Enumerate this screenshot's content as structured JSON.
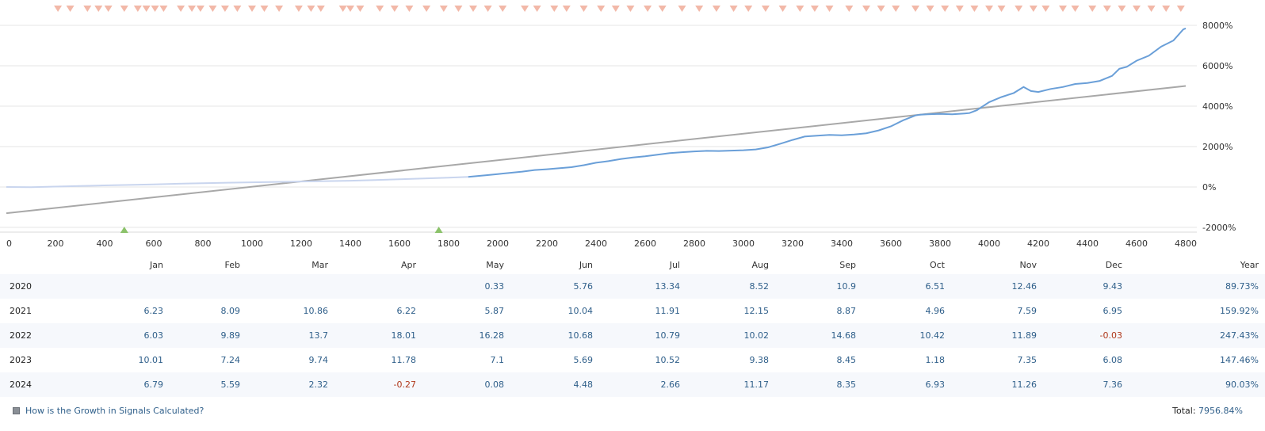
{
  "chart_data": {
    "type": "line",
    "x_ticks": [
      "0",
      "200",
      "400",
      "600",
      "800",
      "1000",
      "1200",
      "1400",
      "1600",
      "1800",
      "2000",
      "2200",
      "2400",
      "2600",
      "2800",
      "3000",
      "3200",
      "3400",
      "3600",
      "3800",
      "4000",
      "4200",
      "4400",
      "4600",
      "4800"
    ],
    "y_ticks": [
      "8000%",
      "6000%",
      "4000%",
      "2000%",
      "0%",
      "-2000%"
    ],
    "xlim": [
      0,
      4800
    ],
    "ylim": [
      -2000,
      8000
    ],
    "grid": true,
    "series": [
      {
        "kind": "growth",
        "color": "#6a9fd8",
        "faded_color": "#c9d5ee",
        "faded_until": 1900,
        "x": [
          0,
          100,
          200,
          300,
          400,
          500,
          600,
          700,
          800,
          900,
          1000,
          1100,
          1200,
          1300,
          1400,
          1500,
          1600,
          1700,
          1800,
          1880,
          1950,
          2000,
          2100,
          2150,
          2200,
          2300,
          2350,
          2400,
          2450,
          2500,
          2550,
          2600,
          2650,
          2700,
          2750,
          2800,
          2850,
          2900,
          2950,
          3000,
          3050,
          3100,
          3150,
          3200,
          3250,
          3300,
          3350,
          3400,
          3450,
          3500,
          3550,
          3600,
          3650,
          3700,
          3720,
          3750,
          3800,
          3850,
          3900,
          3920,
          3950,
          4000,
          4050,
          4100,
          4140,
          4170,
          4200,
          4250,
          4300,
          4350,
          4400,
          4450,
          4500,
          4530,
          4560,
          4600,
          4650,
          4700,
          4750,
          4790,
          4800
        ],
        "y": [
          0,
          -10,
          20,
          50,
          80,
          100,
          130,
          160,
          190,
          210,
          230,
          250,
          270,
          290,
          310,
          340,
          380,
          420,
          460,
          500,
          580,
          640,
          760,
          840,
          880,
          980,
          1080,
          1200,
          1280,
          1380,
          1460,
          1520,
          1600,
          1680,
          1720,
          1760,
          1790,
          1780,
          1800,
          1820,
          1860,
          1960,
          2140,
          2330,
          2500,
          2540,
          2580,
          2560,
          2600,
          2660,
          2800,
          3000,
          3300,
          3540,
          3580,
          3600,
          3620,
          3600,
          3640,
          3660,
          3800,
          4200,
          4450,
          4650,
          4950,
          4750,
          4700,
          4850,
          4950,
          5100,
          5150,
          5250,
          5500,
          5850,
          5950,
          6250,
          6500,
          6950,
          7250,
          7800,
          7850
        ]
      },
      {
        "kind": "trend",
        "color": "#a8a8a8",
        "x": [
          0,
          4800
        ],
        "y": [
          -1300,
          5000
        ]
      }
    ],
    "markers_top": [
      210,
      260,
      330,
      375,
      415,
      480,
      535,
      570,
      605,
      640,
      710,
      755,
      790,
      840,
      890,
      940,
      1000,
      1050,
      1110,
      1190,
      1240,
      1280,
      1370,
      1400,
      1440,
      1520,
      1580,
      1640,
      1710,
      1780,
      1840,
      1900,
      1960,
      2020,
      2110,
      2160,
      2230,
      2280,
      2350,
      2420,
      2480,
      2540,
      2610,
      2670,
      2750,
      2820,
      2890,
      2960,
      3020,
      3090,
      3160,
      3230,
      3290,
      3350,
      3430,
      3500,
      3560,
      3620,
      3700,
      3760,
      3820,
      3880,
      3940,
      4000,
      4050,
      4120,
      4180,
      4230,
      4300,
      4350,
      4420,
      4480,
      4540,
      4600,
      4660,
      4720,
      4780
    ],
    "markers_bottom": [
      480,
      1760
    ]
  },
  "table": {
    "headers": [
      "",
      "Jan",
      "Feb",
      "Mar",
      "Apr",
      "May",
      "Jun",
      "Jul",
      "Aug",
      "Sep",
      "Oct",
      "Nov",
      "Dec",
      "Year"
    ],
    "rows": [
      {
        "year": "2020",
        "values": [
          "",
          "",
          "",
          "",
          "0.33",
          "5.76",
          "13.34",
          "8.52",
          "10.9",
          "6.51",
          "12.46",
          "9.43"
        ],
        "total": "89.73%"
      },
      {
        "year": "2021",
        "values": [
          "6.23",
          "8.09",
          "10.86",
          "6.22",
          "5.87",
          "10.04",
          "11.91",
          "12.15",
          "8.87",
          "4.96",
          "7.59",
          "6.95"
        ],
        "total": "159.92%"
      },
      {
        "year": "2022",
        "values": [
          "6.03",
          "9.89",
          "13.7",
          "18.01",
          "16.28",
          "10.68",
          "10.79",
          "10.02",
          "14.68",
          "10.42",
          "11.89",
          "-0.03"
        ],
        "total": "247.43%"
      },
      {
        "year": "2023",
        "values": [
          "10.01",
          "7.24",
          "9.74",
          "11.78",
          "7.1",
          "5.69",
          "10.52",
          "9.38",
          "8.45",
          "1.18",
          "7.35",
          "6.08"
        ],
        "total": "147.46%"
      },
      {
        "year": "2024",
        "values": [
          "6.79",
          "5.59",
          "2.32",
          "-0.27",
          "0.08",
          "4.48",
          "2.66",
          "11.17",
          "8.35",
          "6.93",
          "11.26",
          "7.36"
        ],
        "total": "90.03%"
      }
    ]
  },
  "footer": {
    "link_text": "How is the Growth in Signals Calculated?",
    "total_label": "Total:",
    "total_value": "7956.84%"
  },
  "colors": {
    "positive": "#2f5f8a",
    "negative": "#b0391c",
    "marker_top": "#f2b8a8",
    "marker_bottom": "#8bc26a"
  }
}
